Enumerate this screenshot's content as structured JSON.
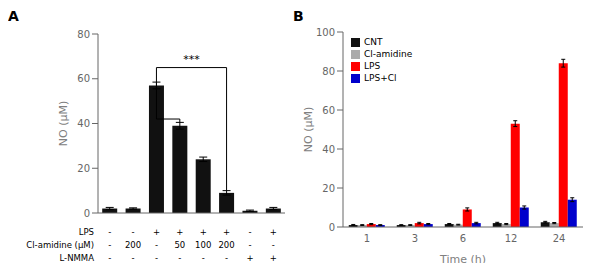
{
  "chart_data": [
    {
      "type": "bar",
      "title": "A",
      "categories": [
        null,
        null,
        null,
        null,
        null,
        null,
        null,
        null
      ],
      "values": [
        2,
        2,
        57,
        39,
        24,
        9,
        1,
        2
      ],
      "errors": [
        0.5,
        0.3,
        1.5,
        1.5,
        1.0,
        1.0,
        0.3,
        0.5
      ],
      "color": "#111111",
      "ylabel": "NO (μM)",
      "ylim": [
        0,
        80
      ],
      "yticks": [
        0,
        20,
        40,
        60,
        80
      ],
      "grid": false,
      "table": {
        "row_labels": [
          "LPS",
          "Cl-amidine (μM)",
          "L-NMMA"
        ],
        "row_values": [
          [
            "-",
            "-",
            "+",
            "+",
            "+",
            "+",
            "-",
            "+"
          ],
          [
            "-",
            "200",
            "-",
            "50",
            "100",
            "200",
            "-",
            "-"
          ],
          [
            "-",
            "-",
            "-",
            "-",
            "-",
            "-",
            "+",
            "+"
          ]
        ]
      },
      "brackets": [
        {
          "x1": 2,
          "x2": 3,
          "y": 42
        },
        {
          "x1": 2,
          "x2": 5,
          "y": 65,
          "text": "***"
        }
      ]
    },
    {
      "type": "bar",
      "title": "B",
      "categories": [
        "1",
        "3",
        "6",
        "12",
        "24"
      ],
      "series": [
        {
          "name": "CNT",
          "color": "#111111",
          "values": [
            1.0,
            1.0,
            1.5,
            2.0,
            2.5
          ],
          "errors": [
            0.3,
            0.2,
            0.3,
            0.4,
            0.4
          ]
        },
        {
          "name": "Cl-amidine",
          "color": "#aaaaaa",
          "values": [
            1.0,
            1.0,
            1.2,
            1.5,
            2.0
          ],
          "errors": [
            0.2,
            0.2,
            0.2,
            0.3,
            0.3
          ]
        },
        {
          "name": "LPS",
          "color": "#ff0000",
          "values": [
            1.5,
            2.0,
            9.0,
            53.0,
            84.0
          ],
          "errors": [
            0.3,
            0.4,
            0.8,
            1.5,
            2.0
          ]
        },
        {
          "name": "LPS+Cl",
          "color": "#0000cc",
          "values": [
            1.0,
            1.5,
            2.0,
            10.0,
            14.0
          ],
          "errors": [
            0.2,
            0.3,
            0.4,
            0.8,
            1.0
          ]
        }
      ],
      "xlabel": "Time (h)",
      "ylabel": "NO (μM)",
      "ylim": [
        0,
        100
      ],
      "yticks": [
        0,
        20,
        40,
        60,
        80,
        100
      ],
      "grid": false,
      "legend": "upper left"
    }
  ]
}
